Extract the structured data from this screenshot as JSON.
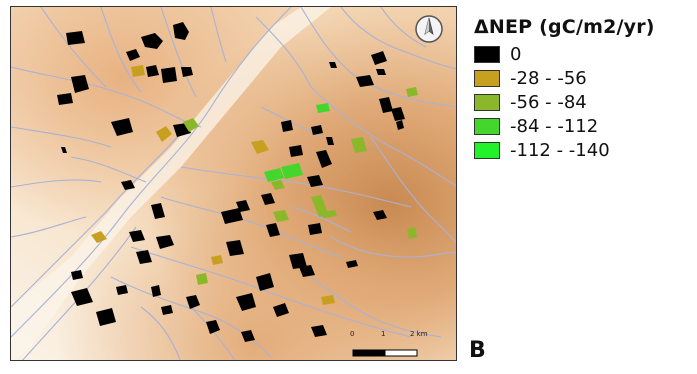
{
  "legend": {
    "title": "ΔNEP (gC/m2/yr)",
    "items": [
      {
        "label": "0",
        "color": "#000000"
      },
      {
        "label": "-28 - -56",
        "color": "#c8a020"
      },
      {
        "label": "-56 - -84",
        "color": "#8ab82a"
      },
      {
        "label": "-84 - -112",
        "color": "#44d62c"
      },
      {
        "label": "-112 - -140",
        "color": "#22f22a"
      }
    ]
  },
  "scalebar": {
    "ticks": [
      "0",
      "1",
      "2 km"
    ]
  },
  "panel_label": "B",
  "north_arrow_icon": "north-arrow-icon",
  "colors": {
    "terrain_low": "#fbf1e4",
    "terrain_mid": "#efc597",
    "terrain_high": "#c98a52",
    "river": "#a8b2d6"
  }
}
